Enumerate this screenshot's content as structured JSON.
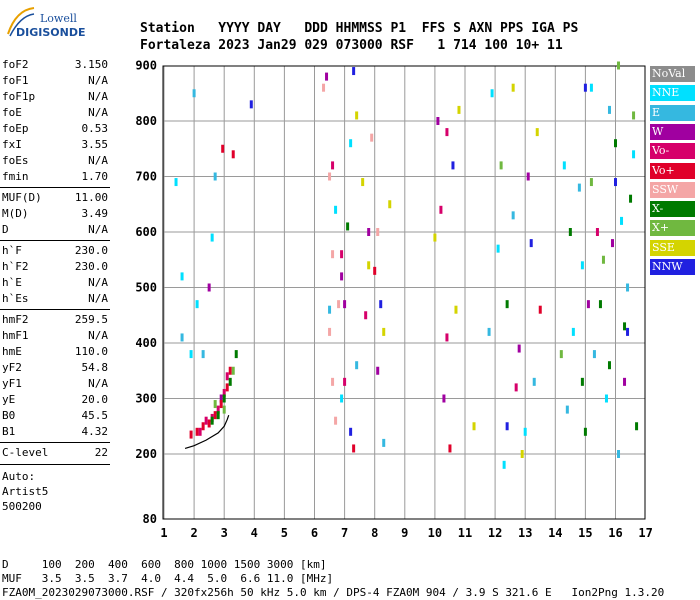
{
  "logo": {
    "line1": "Lowell",
    "line2": "DIGISONDE"
  },
  "header": {
    "line1": "Station   YYYY DAY   DDD HHMMSS P1  FFS S AXN PPS IGA PS",
    "line2": "Fortaleza 2023 Jan29 029 073000 RSF   1 714 100 10+ 11"
  },
  "params": {
    "group1": [
      {
        "k": "foF2",
        "v": "3.150"
      },
      {
        "k": "foF1",
        "v": "N/A"
      },
      {
        "k": "foF1p",
        "v": "N/A"
      },
      {
        "k": "foE",
        "v": "N/A"
      },
      {
        "k": "foEp",
        "v": "0.53"
      },
      {
        "k": "fxI",
        "v": "3.55"
      },
      {
        "k": "foEs",
        "v": "N/A"
      },
      {
        "k": "fmin",
        "v": "1.70"
      }
    ],
    "group2": [
      {
        "k": "MUF(D)",
        "v": "11.00"
      },
      {
        "k": "M(D)",
        "v": "3.49"
      },
      {
        "k": "D",
        "v": "N/A"
      }
    ],
    "group3": [
      {
        "k": "h`F",
        "v": "230.0"
      },
      {
        "k": "h`F2",
        "v": "230.0"
      },
      {
        "k": "h`E",
        "v": "N/A"
      },
      {
        "k": "h`Es",
        "v": "N/A"
      }
    ],
    "group4": [
      {
        "k": "hmF2",
        "v": "259.5"
      },
      {
        "k": "hmF1",
        "v": "N/A"
      },
      {
        "k": "hmE",
        "v": "110.0"
      },
      {
        "k": "yF2",
        "v": "54.8"
      },
      {
        "k": "yF1",
        "v": "N/A"
      },
      {
        "k": "yE",
        "v": "20.0"
      },
      {
        "k": "B0",
        "v": "45.5"
      },
      {
        "k": "B1",
        "v": "4.32"
      }
    ],
    "group5": [
      {
        "k": "C-level",
        "v": "22"
      }
    ],
    "auto_lines": [
      "Auto:",
      "Artist5",
      "500200"
    ]
  },
  "legend": [
    {
      "label": "NoVal",
      "color": "#8c8c8c"
    },
    {
      "label": "NNE",
      "color": "#00e0ff"
    },
    {
      "label": "E",
      "color": "#35b8e0"
    },
    {
      "label": "W",
      "color": "#a000a0"
    },
    {
      "label": "Vo-",
      "color": "#d6006a"
    },
    {
      "label": "Vo+",
      "color": "#e0002a"
    },
    {
      "label": "SSW",
      "color": "#f4a6a6"
    },
    {
      "label": "X-",
      "color": "#007a00"
    },
    {
      "label": "X+",
      "color": "#70b840"
    },
    {
      "label": "SSE",
      "color": "#d4d400"
    },
    {
      "label": "NNW",
      "color": "#2020e0"
    }
  ],
  "footer": {
    "line1": "D     100  200  400  600  800 1000 1500 3000 [km]",
    "line2": "MUF   3.5  3.5  3.7  4.0  4.4  5.0  6.6 11.0 [MHz]",
    "line3": "FZA0M_2023029073000.RSF / 320fx256h 50 kHz 5.0 km / DPS-4 FZA0M 904 / 3.9 S 321.6 E   Ion2Png 1.3.20"
  },
  "chart_data": {
    "type": "scatter",
    "title": "",
    "xlabel": "",
    "ylabel": "",
    "xlim": [
      1,
      17
    ],
    "ylim": [
      80,
      900
    ],
    "x_ticks": [
      1,
      2,
      3,
      4,
      5,
      6,
      7,
      8,
      9,
      10,
      11,
      12,
      13,
      14,
      15,
      16,
      17
    ],
    "y_ticks": [
      80,
      200,
      300,
      400,
      500,
      600,
      700,
      800,
      900
    ],
    "grid": true,
    "series": [
      {
        "name": "NNE",
        "color": "#00e0ff",
        "points": [
          [
            1.4,
            690
          ],
          [
            1.6,
            520
          ],
          [
            1.9,
            380
          ],
          [
            2.1,
            470
          ],
          [
            2.6,
            590
          ],
          [
            6.7,
            640
          ],
          [
            6.9,
            300
          ],
          [
            7.2,
            760
          ],
          [
            11.9,
            850
          ],
          [
            12.1,
            570
          ],
          [
            12.3,
            180
          ],
          [
            13.0,
            240
          ],
          [
            14.3,
            720
          ],
          [
            14.6,
            420
          ],
          [
            14.9,
            540
          ],
          [
            15.2,
            860
          ],
          [
            15.7,
            300
          ],
          [
            16.2,
            620
          ],
          [
            16.6,
            740
          ]
        ]
      },
      {
        "name": "E",
        "color": "#35b8e0",
        "points": [
          [
            1.6,
            410
          ],
          [
            2.0,
            850
          ],
          [
            2.3,
            380
          ],
          [
            2.7,
            700
          ],
          [
            6.5,
            460
          ],
          [
            7.4,
            360
          ],
          [
            8.3,
            220
          ],
          [
            11.8,
            420
          ],
          [
            12.6,
            630
          ],
          [
            13.3,
            330
          ],
          [
            14.4,
            280
          ],
          [
            14.8,
            680
          ],
          [
            15.3,
            380
          ],
          [
            15.8,
            820
          ],
          [
            16.1,
            200
          ],
          [
            16.4,
            500
          ]
        ]
      },
      {
        "name": "W",
        "color": "#a000a0",
        "points": [
          [
            2.5,
            500
          ],
          [
            2.9,
            300
          ],
          [
            6.4,
            880
          ],
          [
            6.9,
            520
          ],
          [
            7.0,
            470
          ],
          [
            7.8,
            600
          ],
          [
            8.1,
            350
          ],
          [
            10.1,
            800
          ],
          [
            10.3,
            300
          ],
          [
            12.8,
            390
          ],
          [
            13.1,
            700
          ],
          [
            15.1,
            470
          ],
          [
            15.9,
            580
          ],
          [
            16.3,
            330
          ]
        ]
      },
      {
        "name": "Vo-",
        "color": "#d6006a",
        "points": [
          [
            2.2,
            240
          ],
          [
            2.4,
            260
          ],
          [
            2.6,
            265
          ],
          [
            2.8,
            280
          ],
          [
            3.0,
            310
          ],
          [
            3.1,
            340
          ],
          [
            6.6,
            720
          ],
          [
            6.9,
            560
          ],
          [
            7.0,
            330
          ],
          [
            7.7,
            450
          ],
          [
            10.2,
            640
          ],
          [
            10.4,
            410
          ],
          [
            10.4,
            780
          ],
          [
            12.7,
            320
          ],
          [
            15.4,
            600
          ]
        ]
      },
      {
        "name": "Vo+",
        "color": "#e0002a",
        "points": [
          [
            1.9,
            235
          ],
          [
            2.1,
            240
          ],
          [
            2.3,
            250
          ],
          [
            2.5,
            255
          ],
          [
            2.7,
            270
          ],
          [
            2.9,
            290
          ],
          [
            3.1,
            320
          ],
          [
            3.2,
            350
          ],
          [
            2.95,
            750
          ],
          [
            3.3,
            740
          ],
          [
            7.3,
            210
          ],
          [
            8.0,
            530
          ],
          [
            10.5,
            210
          ],
          [
            13.5,
            460
          ]
        ]
      },
      {
        "name": "SSW",
        "color": "#f4a6a6",
        "points": [
          [
            6.5,
            420
          ],
          [
            6.6,
            330
          ],
          [
            6.6,
            560
          ],
          [
            6.7,
            260
          ],
          [
            6.8,
            470
          ],
          [
            6.5,
            700
          ],
          [
            7.9,
            770
          ],
          [
            8.1,
            600
          ],
          [
            6.3,
            860
          ]
        ]
      },
      {
        "name": "X-",
        "color": "#007a00",
        "points": [
          [
            2.6,
            260
          ],
          [
            2.8,
            270
          ],
          [
            3.0,
            300
          ],
          [
            3.2,
            330
          ],
          [
            3.4,
            380
          ],
          [
            14.5,
            600
          ],
          [
            14.9,
            330
          ],
          [
            15.0,
            240
          ],
          [
            15.5,
            470
          ],
          [
            15.8,
            360
          ],
          [
            16.0,
            760
          ],
          [
            16.3,
            430
          ],
          [
            16.5,
            660
          ],
          [
            16.7,
            250
          ],
          [
            12.4,
            470
          ],
          [
            7.1,
            610
          ]
        ]
      },
      {
        "name": "X+",
        "color": "#70b840",
        "points": [
          [
            2.7,
            290
          ],
          [
            3.0,
            280
          ],
          [
            3.3,
            350
          ],
          [
            15.2,
            690
          ],
          [
            15.6,
            550
          ],
          [
            16.1,
            900
          ],
          [
            16.6,
            810
          ],
          [
            14.2,
            380
          ],
          [
            12.2,
            720
          ]
        ]
      },
      {
        "name": "SSE",
        "color": "#d4d400",
        "points": [
          [
            7.4,
            810
          ],
          [
            7.6,
            690
          ],
          [
            7.8,
            540
          ],
          [
            8.3,
            420
          ],
          [
            8.5,
            650
          ],
          [
            10.0,
            590
          ],
          [
            10.7,
            460
          ],
          [
            10.8,
            820
          ],
          [
            11.3,
            250
          ],
          [
            12.9,
            200
          ],
          [
            13.4,
            780
          ],
          [
            12.6,
            860
          ]
        ]
      },
      {
        "name": "NNW",
        "color": "#2020e0",
        "points": [
          [
            3.9,
            830
          ],
          [
            7.2,
            240
          ],
          [
            7.3,
            890
          ],
          [
            8.2,
            470
          ],
          [
            10.6,
            720
          ],
          [
            12.4,
            250
          ],
          [
            13.2,
            580
          ],
          [
            15.0,
            860
          ],
          [
            16.0,
            690
          ],
          [
            16.4,
            420
          ]
        ]
      }
    ],
    "profile_curve": {
      "color": "#000000",
      "points": [
        [
          1.7,
          210
        ],
        [
          2.0,
          215
        ],
        [
          2.4,
          225
        ],
        [
          2.8,
          238
        ],
        [
          3.0,
          250
        ],
        [
          3.1,
          262
        ],
        [
          3.15,
          270
        ]
      ]
    }
  }
}
